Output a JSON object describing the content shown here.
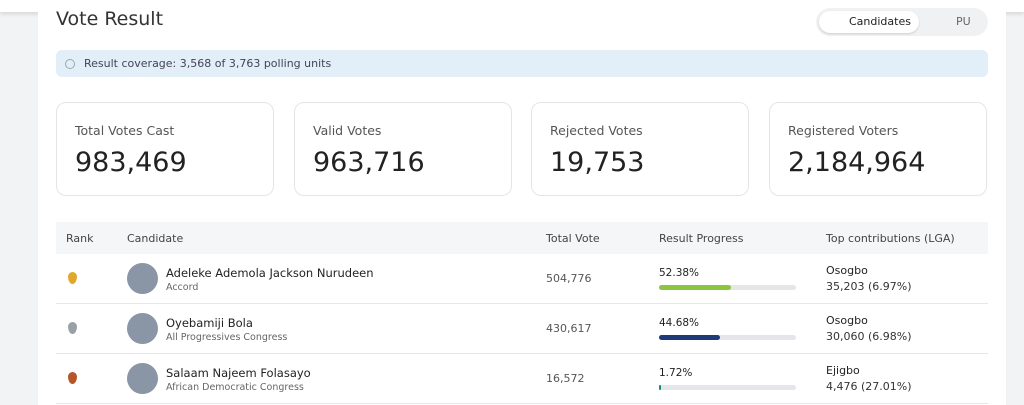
{
  "header": {
    "title": "Vote Result",
    "tabs": [
      "Candidates",
      "PU"
    ]
  },
  "coverage": "Result coverage: 3,568 of 3,763 polling units",
  "stats": [
    {
      "label": "Total Votes Cast",
      "value": "983,469"
    },
    {
      "label": "Valid Votes",
      "value": "963,716"
    },
    {
      "label": "Rejected Votes",
      "value": "19,753"
    },
    {
      "label": "Registered Voters",
      "value": "2,184,964"
    }
  ],
  "table": {
    "columns": [
      "Rank",
      "Candidate",
      "Total Vote",
      "Result Progress",
      "Top contributions (LGA)"
    ],
    "rows": [
      {
        "name": "Adeleke Ademola Jackson Nurudeen",
        "party": "Accord",
        "total": "504,776",
        "progress": {
          "value": 52.38,
          "label": "52.38%"
        },
        "color": "#8cc63f",
        "lga": "Osogbo",
        "lga_votes": "35,203 (6.97%)"
      },
      {
        "name": "Oyebamiji Bola",
        "party": "All Progressives Congress",
        "total": "430,617",
        "progress": {
          "value": 44.68,
          "label": "44.68%"
        },
        "color": "#1f3a78",
        "lga": "Osogbo",
        "lga_votes": "30,060 (6.98%)"
      },
      {
        "name": "Salaam Najeem Folasayo",
        "party": "African Democratic Congress",
        "total": "16,572",
        "progress": {
          "value": 1.72,
          "label": "1.72%"
        },
        "color": "#128a7a",
        "lga": "Ejigbo",
        "lga_votes": "4,476 (27.01%)"
      }
    ]
  }
}
